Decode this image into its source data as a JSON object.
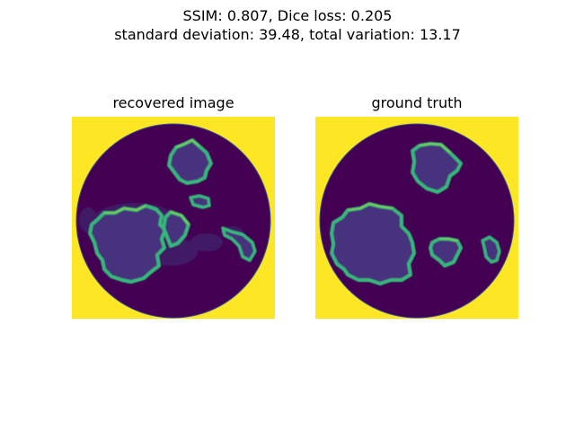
{
  "figure": {
    "suptitle_line1": "SSIM: 0.807, Dice loss: 0.205",
    "suptitle_line2": "standard deviation: 39.48, total variation: 13.17"
  },
  "panels": [
    {
      "title": "recovered image"
    },
    {
      "title": "ground truth"
    }
  ],
  "colors": {
    "background": "#fde725",
    "disk": "#440154",
    "blob_fill": "#46327e",
    "blob_edge": "#35b779",
    "edge_highlight": "#90d743"
  }
}
